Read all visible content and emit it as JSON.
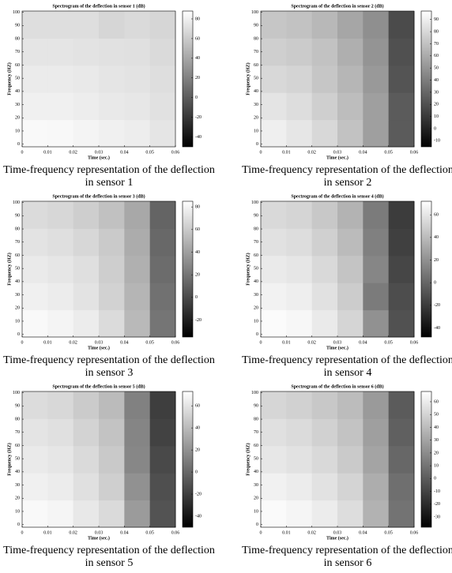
{
  "chart_data": [
    {
      "type": "heatmap",
      "title": "Spectrogram of the deflection in sensor 1 (dB)",
      "x_label": "Time (sec.)",
      "y_label": "Frequency (HZ)",
      "caption": "Time-frequency representation of the deflection in sensor 1",
      "x": [
        0.005,
        0.015,
        0.025,
        0.035,
        0.045,
        0.055
      ],
      "y": [
        10,
        30,
        50,
        70,
        90
      ],
      "z": [
        [
          85,
          84,
          82,
          80,
          78,
          74
        ],
        [
          80,
          80,
          78,
          76,
          75,
          72
        ],
        [
          77,
          77,
          76,
          74,
          73,
          70
        ],
        [
          74,
          74,
          73,
          72,
          71,
          68
        ],
        [
          70,
          70,
          70,
          66,
          68,
          66
        ]
      ],
      "xlim": [
        0,
        0.06
      ],
      "xticks": [
        0,
        0.01,
        0.02,
        0.03,
        0.04,
        0.05,
        0.06
      ],
      "ylim": [
        -2,
        101
      ],
      "yticks": [
        0,
        10,
        20,
        30,
        40,
        50,
        60,
        70,
        80,
        90,
        100
      ],
      "clim": [
        -50,
        88
      ],
      "cticks": [
        -40,
        -20,
        0,
        20,
        40,
        60,
        80
      ]
    },
    {
      "type": "heatmap",
      "title": "Spectrogram of the deflection in sensor 2 (dB)",
      "x_label": "Time (sec.)",
      "y_label": "Frequency (HZ)",
      "caption": "Time-frequency representation of the deflection in sensor 2",
      "x": [
        0.005,
        0.015,
        0.025,
        0.035,
        0.045,
        0.055
      ],
      "y": [
        10,
        30,
        50,
        70,
        90
      ],
      "z": [
        [
          90,
          86,
          80,
          70,
          55,
          25
        ],
        [
          85,
          82,
          76,
          68,
          55,
          25
        ],
        [
          80,
          78,
          72,
          65,
          52,
          22
        ],
        [
          76,
          74,
          70,
          62,
          50,
          20
        ],
        [
          72,
          70,
          66,
          58,
          48,
          18
        ]
      ],
      "xlim": [
        0,
        0.06
      ],
      "xticks": [
        0,
        0.01,
        0.02,
        0.03,
        0.04,
        0.05,
        0.06
      ],
      "ylim": [
        -2,
        101
      ],
      "yticks": [
        0,
        10,
        20,
        30,
        40,
        50,
        60,
        70,
        80,
        90,
        100
      ],
      "clim": [
        -15,
        97
      ],
      "cticks": [
        -10,
        0,
        10,
        20,
        30,
        40,
        50,
        60,
        70,
        80,
        90
      ]
    },
    {
      "type": "heatmap",
      "title": "Spectrogram of the deflection in sensor 3 (dB)",
      "x_label": "Time (sec.)",
      "y_label": "Frequency (HZ)",
      "caption": "Time-frequency representation of the deflection in sensor 3",
      "x": [
        0.005,
        0.015,
        0.025,
        0.035,
        0.045,
        0.055
      ],
      "y": [
        10,
        30,
        50,
        70,
        90
      ],
      "z": [
        [
          82,
          80,
          76,
          68,
          52,
          20
        ],
        [
          78,
          76,
          72,
          64,
          50,
          18
        ],
        [
          75,
          73,
          70,
          62,
          48,
          16
        ],
        [
          72,
          70,
          66,
          60,
          46,
          14
        ],
        [
          68,
          66,
          62,
          56,
          44,
          12
        ]
      ],
      "xlim": [
        0,
        0.06
      ],
      "xticks": [
        0,
        0.01,
        0.02,
        0.03,
        0.04,
        0.05,
        0.06
      ],
      "ylim": [
        -2,
        101
      ],
      "yticks": [
        0,
        10,
        20,
        30,
        40,
        50,
        60,
        70,
        80,
        90,
        100
      ],
      "clim": [
        -35,
        85
      ],
      "cticks": [
        -20,
        0,
        20,
        40,
        60,
        80
      ]
    },
    {
      "type": "heatmap",
      "title": "Spectrogram of the deflection in sensor 4 (dB)",
      "x_label": "Time (sec.)",
      "y_label": "Frequency (HZ)",
      "caption": "Time-frequency representation of the deflection in sensor 4",
      "x": [
        0.005,
        0.015,
        0.025,
        0.035,
        0.045,
        0.055
      ],
      "y": [
        10,
        30,
        50,
        70,
        90
      ],
      "z": [
        [
          70,
          68,
          62,
          52,
          20,
          -10
        ],
        [
          66,
          64,
          58,
          48,
          10,
          -12
        ],
        [
          62,
          60,
          54,
          44,
          15,
          -15
        ],
        [
          58,
          56,
          50,
          40,
          12,
          -18
        ],
        [
          54,
          52,
          46,
          36,
          10,
          -20
        ]
      ],
      "xlim": [
        0,
        0.06
      ],
      "xticks": [
        0,
        0.01,
        0.02,
        0.03,
        0.04,
        0.05,
        0.06
      ],
      "ylim": [
        -2,
        101
      ],
      "yticks": [
        0,
        10,
        20,
        30,
        40,
        50,
        60,
        70,
        80,
        90,
        100
      ],
      "clim": [
        -48,
        72
      ],
      "cticks": [
        -40,
        -20,
        0,
        20,
        40,
        60
      ]
    },
    {
      "type": "heatmap",
      "title": "Spectrogram of the deflection in sensor 5 (dB)",
      "x_label": "Time (sec.)",
      "y_label": "Frequency (HZ)",
      "caption": "Time-frequency representation of the deflection in sensor 5",
      "x": [
        0.005,
        0.015,
        0.025,
        0.035,
        0.045,
        0.055
      ],
      "y": [
        10,
        30,
        50,
        70,
        90
      ],
      "z": [
        [
          70,
          68,
          62,
          55,
          25,
          -10
        ],
        [
          66,
          64,
          58,
          50,
          20,
          -12
        ],
        [
          63,
          61,
          55,
          47,
          15,
          -15
        ],
        [
          60,
          58,
          52,
          44,
          14,
          -18
        ],
        [
          56,
          54,
          48,
          40,
          12,
          -20
        ]
      ],
      "xlim": [
        0,
        0.06
      ],
      "xticks": [
        0,
        0.01,
        0.02,
        0.03,
        0.04,
        0.05,
        0.06
      ],
      "ylim": [
        -2,
        101
      ],
      "yticks": [
        0,
        10,
        20,
        30,
        40,
        50,
        60,
        70,
        80,
        90,
        100
      ],
      "clim": [
        -50,
        73
      ],
      "cticks": [
        -40,
        -20,
        0,
        20,
        40,
        60
      ]
    },
    {
      "type": "heatmap",
      "title": "Spectrogram of the deflection in sensor 6 (dB)",
      "x_label": "Time (sec.)",
      "y_label": "Frequency (HZ)",
      "caption": "Time-frequency representation of the deflection in sensor 6",
      "x": [
        0.005,
        0.015,
        0.025,
        0.035,
        0.045,
        0.055
      ],
      "y": [
        10,
        30,
        50,
        70,
        90
      ],
      "z": [
        [
          66,
          64,
          60,
          54,
          36,
          10
        ],
        [
          62,
          60,
          56,
          50,
          34,
          8
        ],
        [
          58,
          56,
          52,
          46,
          30,
          5
        ],
        [
          55,
          53,
          49,
          43,
          28,
          2
        ],
        [
          51,
          49,
          45,
          40,
          26,
          0
        ]
      ],
      "xlim": [
        0,
        0.06
      ],
      "xticks": [
        0,
        0.01,
        0.02,
        0.03,
        0.04,
        0.05,
        0.06
      ],
      "ylim": [
        -2,
        101
      ],
      "yticks": [
        0,
        10,
        20,
        30,
        40,
        50,
        60,
        70,
        80,
        90,
        100
      ],
      "clim": [
        -38,
        68
      ],
      "cticks": [
        -30,
        -20,
        -10,
        0,
        10,
        20,
        30,
        40,
        50,
        60
      ]
    }
  ]
}
